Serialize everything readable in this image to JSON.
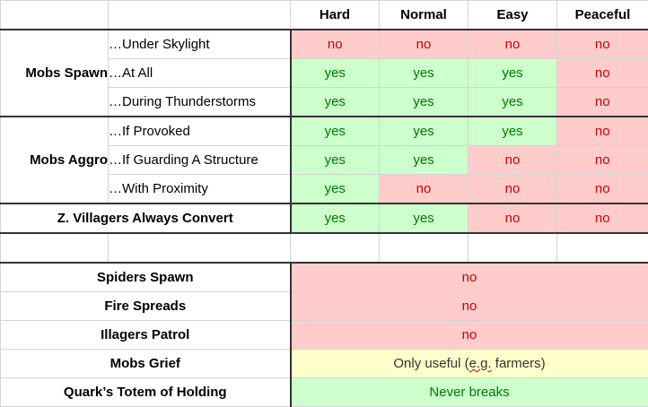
{
  "header": {
    "cols": [
      "Hard",
      "Normal",
      "Easy",
      "Peaceful"
    ]
  },
  "groups": {
    "spawn": {
      "label": "Mobs Spawn",
      "rows": [
        {
          "label": "…Under Skylight",
          "values": [
            "no",
            "no",
            "no",
            "no"
          ]
        },
        {
          "label": "…At All",
          "values": [
            "yes",
            "yes",
            "yes",
            "no"
          ]
        },
        {
          "label": "…During Thunderstorms",
          "values": [
            "yes",
            "yes",
            "yes",
            "no"
          ]
        }
      ]
    },
    "aggro": {
      "label": "Mobs Aggro",
      "rows": [
        {
          "label": "…If Provoked",
          "values": [
            "yes",
            "yes",
            "yes",
            "no"
          ]
        },
        {
          "label": "…If Guarding A Structure",
          "values": [
            "yes",
            "yes",
            "no",
            "no"
          ]
        },
        {
          "label": "…With Proximity",
          "values": [
            "yes",
            "no",
            "no",
            "no"
          ]
        }
      ]
    }
  },
  "villagers": {
    "label": "Z. Villagers Always Convert",
    "values": [
      "yes",
      "yes",
      "no",
      "no"
    ]
  },
  "settings": [
    {
      "label": "Spiders Spawn",
      "value": "no"
    },
    {
      "label": "Fire Spreads",
      "value": "no"
    },
    {
      "label": "Illagers Patrol",
      "value": "no"
    },
    {
      "label": "Mobs Grief",
      "value_pre": "Only useful (",
      "value_squiggle": "e.g.",
      "value_post": " farmers)"
    },
    {
      "label": "Quark’s Totem of Holding",
      "value": "Never breaks"
    }
  ],
  "colors": {
    "no_bg": "#ffcccc",
    "no_text": "#cc0000",
    "yes_bg": "#ccffcc",
    "yes_text": "#007800",
    "note_bg": "#ffffcc",
    "grid": "#d4d4d4",
    "border_dark": "#333333"
  }
}
